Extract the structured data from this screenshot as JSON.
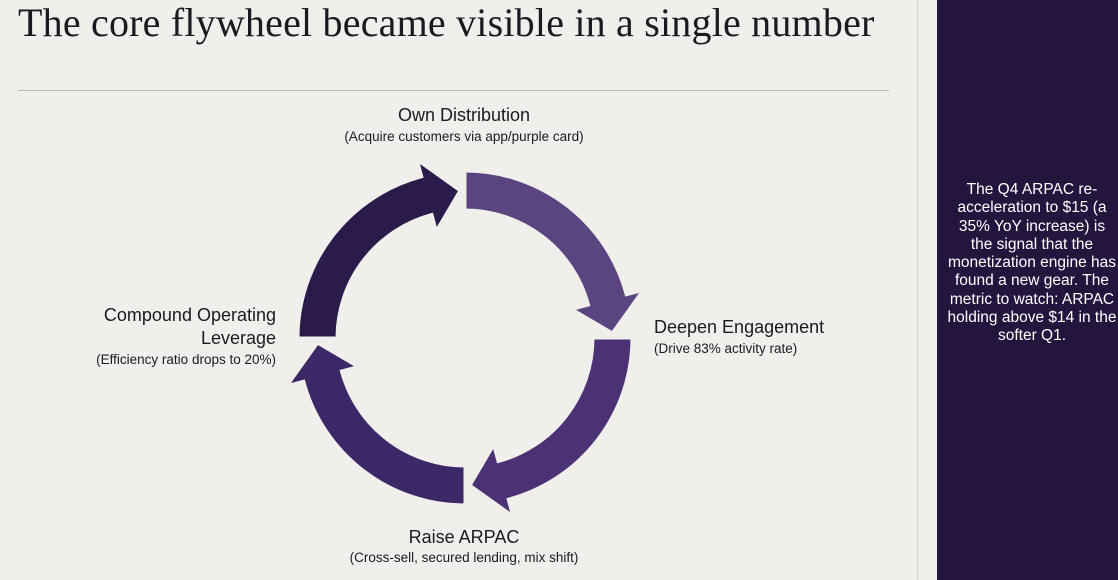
{
  "title": "The core flywheel became visible in a single number",
  "flywheel": {
    "top": {
      "title": "Own Distribution",
      "subtitle": "(Acquire customers via app/purple card)"
    },
    "right": {
      "title": "Deepen Engagement",
      "subtitle": "(Drive 83% activity rate)"
    },
    "bottom": {
      "title": "Raise ARPAC",
      "subtitle": "(Cross-sell, secured lending, mix shift)"
    },
    "left": {
      "title_line1": "Compound Operating",
      "title_line2": "Leverage",
      "subtitle": "(Efficiency ratio drops to 20%)"
    }
  },
  "sidebar": {
    "text": "The Q4 ARPAC re-acceleration to $15 (a 35% YoY increase) is the signal that the monetization engine has found a new gear. The metric to watch: ARPAC holding above $14 in the softer Q1."
  },
  "colors": {
    "panel": "#24153f",
    "arrow_top_right": "#5a4580",
    "arrow_right_bottom": "#4a3274",
    "arrow_bottom_left": "#3c2866",
    "arrow_left_top": "#2a1b4b"
  }
}
